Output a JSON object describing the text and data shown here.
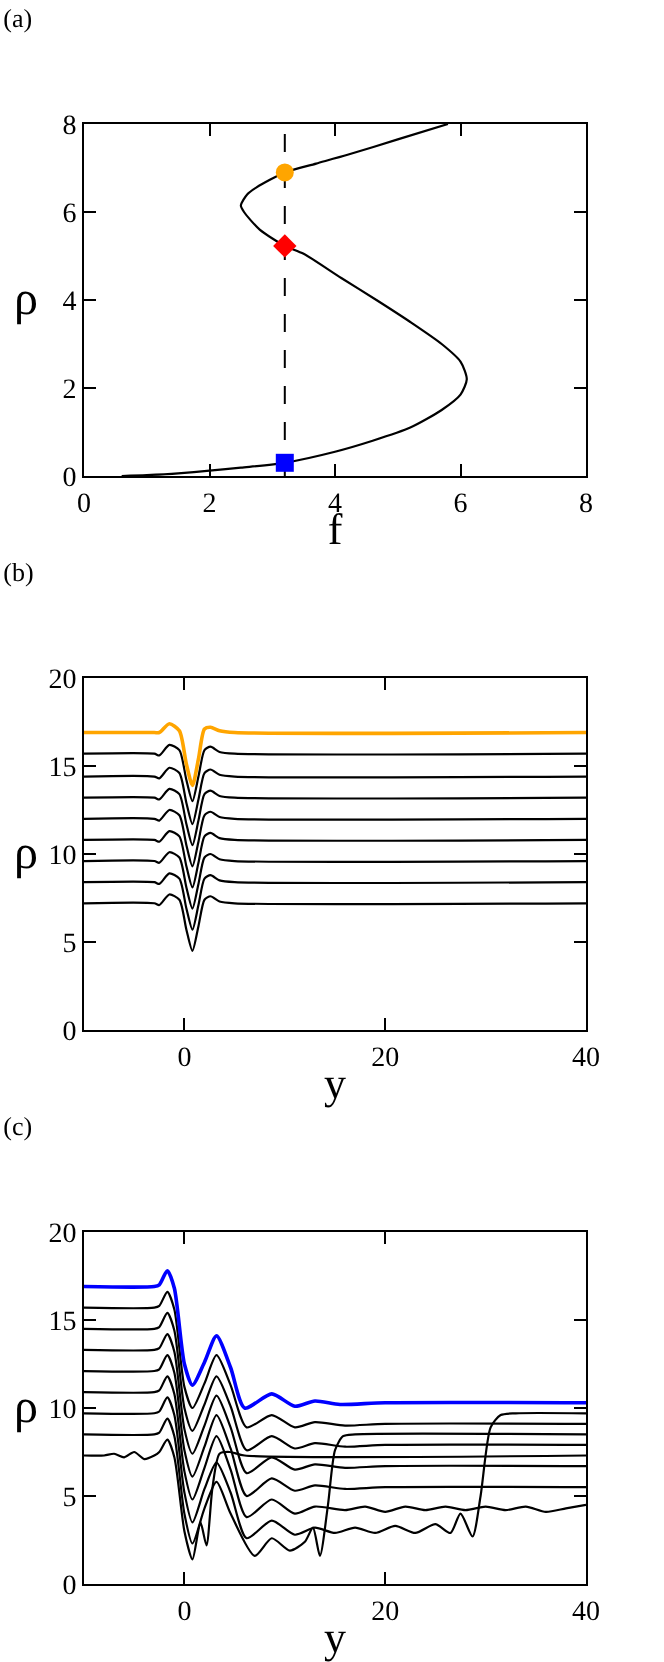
{
  "chart_data": [
    {
      "type": "line",
      "title": "(a)",
      "xlabel": "f",
      "ylabel": "ρ",
      "xlim": [
        0,
        8
      ],
      "ylim": [
        0,
        8
      ],
      "xticks": [
        0,
        2,
        4,
        6,
        8
      ],
      "yticks": [
        0,
        2,
        4,
        6,
        8
      ],
      "grid": false,
      "ref_lines": [
        {
          "axis": "x",
          "value": 3.2,
          "color": "#000000",
          "line_style": "dashed"
        }
      ],
      "series": [
        {
          "type": "line",
          "color": "#000000",
          "x": [
            0.6,
            1.0,
            1.5,
            2.0,
            2.5,
            3.2,
            4.0,
            4.6,
            5.2,
            5.7,
            6.0,
            6.1,
            6.0,
            5.7,
            5.2,
            4.66,
            4.1,
            3.5,
            3.2,
            2.8,
            2.55,
            2.5,
            2.6,
            2.75,
            3.2,
            3.7,
            4.2,
            5.0,
            5.8
          ],
          "values": [
            0,
            0.02,
            0.06,
            0.12,
            0.19,
            0.3,
            0.55,
            0.8,
            1.1,
            1.5,
            1.85,
            2.2,
            2.6,
            3.0,
            3.5,
            4.0,
            4.5,
            5.05,
            5.23,
            5.6,
            6.0,
            6.15,
            6.4,
            6.56,
            6.9,
            7.1,
            7.3,
            7.65,
            8.0
          ]
        },
        {
          "type": "scatter",
          "marker": "circle",
          "color": "#ffa500",
          "x": [
            3.2
          ],
          "values": [
            6.9
          ]
        },
        {
          "type": "scatter",
          "marker": "diamond",
          "color": "#ff0000",
          "x": [
            3.2
          ],
          "values": [
            5.23
          ]
        },
        {
          "type": "scatter",
          "marker": "square",
          "color": "#0000ff",
          "x": [
            3.2
          ],
          "values": [
            0.3
          ]
        }
      ]
    },
    {
      "type": "line",
      "title": "(b)",
      "xlabel": "y",
      "ylabel": "ρ",
      "xlim": [
        -10,
        40
      ],
      "ylim": [
        0,
        20
      ],
      "xticks": [
        0,
        20,
        40
      ],
      "yticks": [
        0,
        5,
        10,
        15,
        20
      ],
      "grid": false,
      "x": [
        -10,
        -3,
        -2.5,
        -1.5,
        -0.5,
        0.2,
        0.8,
        1.4,
        2.0,
        2.6,
        3.5,
        5,
        40
      ],
      "series": [
        {
          "color": "#000000",
          "values": [
            7.2,
            7.2,
            7.1,
            7.7,
            7.4,
            5.7,
            4.5,
            5.9,
            7.4,
            7.6,
            7.3,
            7.2,
            7.2
          ]
        },
        {
          "color": "#000000",
          "values": [
            8.4,
            8.4,
            8.3,
            8.9,
            8.6,
            6.9,
            5.7,
            7.1,
            8.6,
            8.8,
            8.5,
            8.4,
            8.4
          ]
        },
        {
          "color": "#000000",
          "values": [
            9.6,
            9.6,
            9.5,
            10.1,
            9.8,
            8.1,
            6.9,
            8.3,
            9.8,
            10.0,
            9.7,
            9.6,
            9.6
          ]
        },
        {
          "color": "#000000",
          "values": [
            10.8,
            10.8,
            10.7,
            11.3,
            11.0,
            9.3,
            8.1,
            9.5,
            11.0,
            11.2,
            10.9,
            10.8,
            10.8
          ]
        },
        {
          "color": "#000000",
          "values": [
            12.0,
            12.0,
            11.9,
            12.5,
            12.2,
            10.5,
            9.3,
            10.7,
            12.2,
            12.4,
            12.1,
            12.0,
            12.0
          ]
        },
        {
          "color": "#000000",
          "values": [
            13.2,
            13.2,
            13.1,
            13.7,
            13.4,
            11.7,
            10.5,
            11.9,
            13.4,
            13.6,
            13.3,
            13.2,
            13.2
          ]
        },
        {
          "color": "#000000",
          "values": [
            14.4,
            14.4,
            14.3,
            14.9,
            14.6,
            12.9,
            11.7,
            13.1,
            14.6,
            14.8,
            14.5,
            14.4,
            14.4
          ]
        },
        {
          "color": "#000000",
          "values": [
            15.7,
            15.7,
            15.6,
            16.2,
            15.9,
            14.2,
            13.0,
            14.4,
            15.9,
            16.1,
            15.8,
            15.7,
            15.7
          ]
        },
        {
          "color": "#ffa500",
          "values": [
            16.9,
            16.9,
            16.9,
            17.4,
            17.0,
            15.1,
            13.9,
            15.4,
            17.1,
            17.2,
            17.0,
            16.9,
            16.9
          ]
        }
      ]
    },
    {
      "type": "line",
      "title": "(c)",
      "xlabel": "y",
      "ylabel": "ρ",
      "xlim": [
        -10,
        40
      ],
      "ylim": [
        0,
        20
      ],
      "xticks": [
        0,
        20,
        40
      ],
      "yticks": [
        0,
        5,
        10,
        15,
        20
      ],
      "grid": false,
      "series": [
        {
          "color": "#000000",
          "x": [
            -10,
            -8,
            -7,
            -6,
            -5,
            -4,
            -3,
            -2.5,
            -1.7,
            -1,
            0,
            0.8,
            1.6,
            2.2,
            2.8,
            3.5,
            4.5,
            6,
            40
          ],
          "values": [
            7.3,
            7.3,
            7.4,
            7.2,
            7.5,
            7.1,
            7.3,
            7.5,
            8.2,
            7.2,
            3.0,
            1.4,
            3.5,
            2.2,
            5.5,
            7.4,
            7.5,
            7.3,
            7.3
          ]
        },
        {
          "color": "#000000",
          "x": [
            -10,
            -3,
            -2.5,
            -1.7,
            -1,
            0,
            0.8,
            2,
            3.2,
            4.6,
            7,
            8.7,
            10.5,
            12,
            12.8,
            13.5,
            14.3,
            15,
            15.8,
            17,
            40
          ],
          "values": [
            8.5,
            8.5,
            8.6,
            9.4,
            8.4,
            4.0,
            2.3,
            4.3,
            5.8,
            4.0,
            1.6,
            2.6,
            1.9,
            2.4,
            3.2,
            1.6,
            4.5,
            7.6,
            8.4,
            8.5,
            8.5
          ]
        },
        {
          "color": "#000000",
          "x": [
            -10,
            -3,
            -2.5,
            -1.7,
            -1,
            0,
            0.8,
            2,
            3.2,
            4.6,
            6.2,
            8.7,
            11,
            13,
            15,
            17,
            19,
            21,
            23,
            25,
            26.5,
            27.5,
            28.7,
            29.5,
            30.5,
            31.5,
            33,
            40
          ],
          "values": [
            9.7,
            9.7,
            9.8,
            10.6,
            9.6,
            5.2,
            3.5,
            5.4,
            6.9,
            5.2,
            2.6,
            3.6,
            2.8,
            3.2,
            2.9,
            3.2,
            2.9,
            3.3,
            2.9,
            3.4,
            2.9,
            4.0,
            2.7,
            5.0,
            8.9,
            9.6,
            9.7,
            9.7
          ]
        },
        {
          "color": "#000000",
          "x": [
            -10,
            -3,
            -2.5,
            -1.7,
            -1,
            0,
            0.8,
            2,
            3.2,
            4.6,
            6.2,
            8.7,
            11,
            13,
            16,
            18,
            20,
            22,
            24,
            26,
            28,
            30,
            32,
            34,
            36,
            38,
            40
          ],
          "values": [
            10.9,
            10.9,
            11.0,
            11.8,
            10.8,
            6.4,
            4.8,
            6.6,
            8.4,
            6.5,
            3.8,
            4.8,
            4.0,
            4.4,
            4.2,
            4.4,
            4.1,
            4.4,
            4.2,
            4.4,
            4.2,
            4.4,
            4.2,
            4.4,
            4.1,
            4.3,
            4.5
          ]
        },
        {
          "color": "#000000",
          "x": [
            -10,
            -3,
            -2.5,
            -1.7,
            -1,
            0,
            0.8,
            2,
            3.2,
            4.6,
            6.2,
            8.7,
            11,
            13,
            16,
            20,
            40
          ],
          "values": [
            12.1,
            12.1,
            12.2,
            13.0,
            12.0,
            7.6,
            6.1,
            7.8,
            9.6,
            7.7,
            5.0,
            6.0,
            5.3,
            5.6,
            5.4,
            5.5,
            5.5
          ]
        },
        {
          "color": "#000000",
          "x": [
            -10,
            -3,
            -2.5,
            -1.7,
            -1,
            0,
            0.8,
            2,
            3.2,
            4.6,
            6.2,
            8.7,
            11,
            13,
            16,
            20,
            40
          ],
          "values": [
            13.3,
            13.3,
            13.4,
            14.2,
            13.2,
            8.8,
            7.4,
            9.0,
            10.7,
            8.9,
            6.3,
            7.2,
            6.5,
            6.8,
            6.6,
            6.7,
            6.7
          ]
        },
        {
          "color": "#000000",
          "x": [
            -10,
            -3,
            -2.5,
            -1.7,
            -1,
            0,
            0.8,
            2,
            3.2,
            4.6,
            6.2,
            8.7,
            11,
            13,
            16,
            20,
            40
          ],
          "values": [
            14.5,
            14.5,
            14.6,
            15.4,
            14.4,
            10.0,
            8.7,
            10.2,
            11.8,
            10.1,
            7.6,
            8.4,
            7.7,
            8.0,
            7.8,
            7.9,
            7.9
          ]
        },
        {
          "color": "#000000",
          "x": [
            -10,
            -3,
            -2.5,
            -1.7,
            -1,
            0,
            0.8,
            2,
            3.2,
            4.6,
            6.2,
            8.7,
            11,
            13,
            16,
            20,
            40
          ],
          "values": [
            15.7,
            15.7,
            15.8,
            16.6,
            15.6,
            11.2,
            10.0,
            11.4,
            13.0,
            11.3,
            8.9,
            9.6,
            8.9,
            9.2,
            9.0,
            9.1,
            9.1
          ]
        },
        {
          "color": "#0000ff",
          "x": [
            -10,
            -3,
            -2.5,
            -1.7,
            -1,
            0,
            0.8,
            2,
            3.2,
            4.6,
            6.0,
            8.7,
            11,
            13,
            15.5,
            20,
            40
          ],
          "values": [
            16.9,
            16.9,
            17.0,
            17.8,
            16.8,
            12.5,
            11.3,
            12.6,
            14.1,
            12.3,
            10.0,
            10.8,
            10.1,
            10.4,
            10.2,
            10.3,
            10.3
          ]
        }
      ]
    }
  ]
}
